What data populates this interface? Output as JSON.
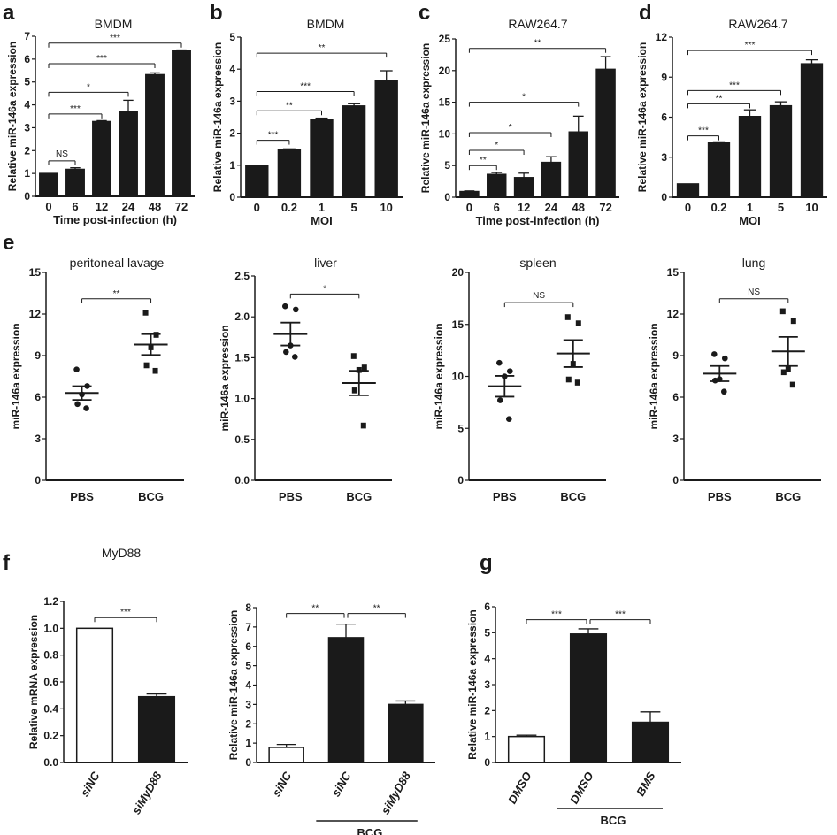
{
  "chart_data": [
    {
      "panel": "a",
      "type": "bar",
      "title": "BMDM",
      "ylabel": "Relative miR-146a expression",
      "xlabel": "Time post-infection (h)",
      "categories": [
        "0",
        "6",
        "12",
        "24",
        "48",
        "72"
      ],
      "values": [
        1.0,
        1.18,
        3.27,
        3.72,
        5.32,
        6.38
      ],
      "errors": [
        0,
        0.07,
        0.04,
        0.48,
        0.08,
        0.02
      ],
      "fills": [
        "#1a1a1a",
        "#1a1a1a",
        "#1a1a1a",
        "#1a1a1a",
        "#1a1a1a",
        "#1a1a1a"
      ],
      "ylim": [
        0,
        7
      ],
      "yticks": [
        0,
        1,
        2,
        3,
        4,
        5,
        6,
        7
      ],
      "ytick_labels": [
        "0",
        "1",
        "2",
        "3",
        "4",
        "5",
        "6",
        "7"
      ],
      "brackets": [
        {
          "from": 0,
          "to": 1,
          "y": 1.55,
          "label": "NS"
        },
        {
          "from": 0,
          "to": 2,
          "y": 3.6,
          "label": "***"
        },
        {
          "from": 0,
          "to": 3,
          "y": 4.55,
          "label": "*"
        },
        {
          "from": 0,
          "to": 4,
          "y": 5.8,
          "label": "***"
        },
        {
          "from": 0,
          "to": 5,
          "y": 6.7,
          "label": "***"
        }
      ]
    },
    {
      "panel": "b",
      "type": "bar",
      "title": "BMDM",
      "ylabel": "Relative miR-146a expression",
      "xlabel": "MOI",
      "categories": [
        "0",
        "0.2",
        "1",
        "5",
        "10"
      ],
      "values": [
        1.0,
        1.48,
        2.42,
        2.85,
        3.65
      ],
      "errors": [
        0,
        0.03,
        0.05,
        0.07,
        0.3
      ],
      "fills": [
        "#1a1a1a",
        "#1a1a1a",
        "#1a1a1a",
        "#1a1a1a",
        "#1a1a1a"
      ],
      "ylim": [
        0,
        5
      ],
      "yticks": [
        0,
        1,
        2,
        3,
        4,
        5
      ],
      "ytick_labels": [
        "0",
        "1",
        "2",
        "3",
        "4",
        "5"
      ],
      "brackets": [
        {
          "from": 0,
          "to": 1,
          "y": 1.78,
          "label": "***"
        },
        {
          "from": 0,
          "to": 2,
          "y": 2.7,
          "label": "**"
        },
        {
          "from": 0,
          "to": 3,
          "y": 3.3,
          "label": "***"
        },
        {
          "from": 0,
          "to": 4,
          "y": 4.5,
          "label": "**"
        }
      ]
    },
    {
      "panel": "c",
      "type": "bar",
      "title": "RAW264.7",
      "ylabel": "Relative miR-146a expression",
      "xlabel": "Time post-infection (h)",
      "categories": [
        "0",
        "6",
        "12",
        "24",
        "48",
        "72"
      ],
      "values": [
        0.9,
        3.6,
        3.1,
        5.5,
        10.3,
        20.2
      ],
      "errors": [
        0.1,
        0.3,
        0.7,
        0.9,
        2.5,
        2.0
      ],
      "fills": [
        "#1a1a1a",
        "#1a1a1a",
        "#1a1a1a",
        "#1a1a1a",
        "#1a1a1a",
        "#1a1a1a"
      ],
      "ylim": [
        0,
        25
      ],
      "yticks": [
        0,
        5,
        10,
        15,
        20,
        25
      ],
      "ytick_labels": [
        "0",
        "5",
        "10",
        "15",
        "20",
        "25"
      ],
      "brackets": [
        {
          "from": 0,
          "to": 1,
          "y": 5.0,
          "label": "**"
        },
        {
          "from": 0,
          "to": 2,
          "y": 7.4,
          "label": "*"
        },
        {
          "from": 0,
          "to": 3,
          "y": 10.2,
          "label": "*"
        },
        {
          "from": 0,
          "to": 4,
          "y": 15.0,
          "label": "*"
        },
        {
          "from": 0,
          "to": 5,
          "y": 23.5,
          "label": "**"
        }
      ]
    },
    {
      "panel": "d",
      "type": "bar",
      "title": "RAW264.7",
      "ylabel": "Relative miR-146a expression",
      "xlabel": "MOI",
      "categories": [
        "0",
        "0.2",
        "1",
        "5",
        "10"
      ],
      "values": [
        1.0,
        4.1,
        6.05,
        6.85,
        10.0
      ],
      "errors": [
        0,
        0.05,
        0.5,
        0.3,
        0.3
      ],
      "fills": [
        "#1a1a1a",
        "#1a1a1a",
        "#1a1a1a",
        "#1a1a1a",
        "#1a1a1a"
      ],
      "ylim": [
        0,
        12
      ],
      "yticks": [
        0,
        3,
        6,
        9,
        12
      ],
      "ytick_labels": [
        "0",
        "3",
        "6",
        "9",
        "12"
      ],
      "brackets": [
        {
          "from": 0,
          "to": 1,
          "y": 4.6,
          "label": "***"
        },
        {
          "from": 0,
          "to": 2,
          "y": 7.0,
          "label": "**"
        },
        {
          "from": 0,
          "to": 3,
          "y": 8.0,
          "label": "***"
        },
        {
          "from": 0,
          "to": 4,
          "y": 11.0,
          "label": "***"
        }
      ]
    },
    {
      "panel": "e",
      "type": "scatter",
      "title": "peritoneal lavage",
      "ylabel": "miR-146a expression",
      "groups": [
        {
          "name": "PBS",
          "marker": "circle",
          "points": [
            8.0,
            6.8,
            6.2,
            5.5,
            5.2
          ],
          "mean": 6.3,
          "sem": 0.5
        },
        {
          "name": "BCG",
          "marker": "square",
          "points": [
            12.1,
            10.5,
            9.6,
            8.3,
            7.9
          ],
          "mean": 9.8,
          "sem": 0.75
        }
      ],
      "ylim": [
        0,
        15
      ],
      "yticks": [
        0,
        3,
        6,
        9,
        12,
        15
      ],
      "ytick_labels": [
        "0",
        "3",
        "6",
        "9",
        "12",
        "15"
      ],
      "brackets": [
        {
          "from": 0,
          "to": 1,
          "y": 13.1,
          "label": "**"
        }
      ]
    },
    {
      "panel": "",
      "type": "scatter",
      "title": "liver",
      "ylabel": "miR-146a expression",
      "groups": [
        {
          "name": "PBS",
          "marker": "circle",
          "points": [
            2.13,
            2.09,
            1.65,
            1.57,
            1.51
          ],
          "mean": 1.79,
          "sem": 0.14
        },
        {
          "name": "BCG",
          "marker": "square",
          "points": [
            1.52,
            1.38,
            1.35,
            1.1,
            0.67
          ],
          "mean": 1.19,
          "sem": 0.15
        }
      ],
      "ylim": [
        0,
        2.5
      ],
      "yticks": [
        0,
        0.5,
        1,
        1.5,
        2,
        2.5
      ],
      "ytick_labels": [
        "0.0",
        "0.5",
        "1.0",
        "1.5",
        "2.0",
        "2.5"
      ],
      "brackets": [
        {
          "from": 0,
          "to": 1,
          "y": 2.28,
          "label": "*"
        }
      ]
    },
    {
      "panel": "",
      "type": "scatter",
      "title": "spleen",
      "ylabel": "miR-146a expression",
      "groups": [
        {
          "name": "PBS",
          "marker": "circle",
          "points": [
            11.3,
            10.5,
            10.0,
            7.7,
            5.9
          ],
          "mean": 9.05,
          "sem": 1.0
        },
        {
          "name": "BCG",
          "marker": "square",
          "points": [
            15.7,
            15.1,
            11.2,
            9.7,
            9.4
          ],
          "mean": 12.2,
          "sem": 1.3
        }
      ],
      "ylim": [
        0,
        20
      ],
      "yticks": [
        0,
        5,
        10,
        15,
        20
      ],
      "ytick_labels": [
        "0",
        "5",
        "10",
        "15",
        "20"
      ],
      "brackets": [
        {
          "from": 0,
          "to": 1,
          "y": 17.1,
          "label": "NS"
        }
      ]
    },
    {
      "panel": "",
      "type": "scatter",
      "title": "lung",
      "ylabel": "miR-146a expression",
      "groups": [
        {
          "name": "PBS",
          "marker": "circle",
          "points": [
            9.1,
            8.8,
            7.3,
            7.2,
            6.4
          ],
          "mean": 7.7,
          "sem": 0.55
        },
        {
          "name": "BCG",
          "marker": "square",
          "points": [
            12.2,
            11.5,
            8.0,
            7.8,
            6.9
          ],
          "mean": 9.3,
          "sem": 1.05
        }
      ],
      "ylim": [
        0,
        15
      ],
      "yticks": [
        0,
        3,
        6,
        9,
        12,
        15
      ],
      "ytick_labels": [
        "0",
        "3",
        "6",
        "9",
        "12",
        "15"
      ],
      "brackets": [
        {
          "from": 0,
          "to": 1,
          "y": 13.1,
          "label": "NS"
        }
      ]
    },
    {
      "panel": "f",
      "type": "bar",
      "title": "MyD88",
      "ylabel": "Relative mRNA expression",
      "xlabel": "",
      "categories": [
        "siNC",
        "siMyD88"
      ],
      "values": [
        1.0,
        0.49
      ],
      "errors": [
        0,
        0.02
      ],
      "fills": [
        "#ffffff",
        "#1a1a1a"
      ],
      "ylim": [
        0,
        1.2
      ],
      "yticks": [
        0,
        0.2,
        0.4,
        0.6,
        0.8,
        1.0,
        1.2
      ],
      "ytick_labels": [
        "0.0",
        "0.2",
        "0.4",
        "0.6",
        "0.8",
        "1.0",
        "1.2"
      ],
      "brackets": [
        {
          "from": 0,
          "to": 1,
          "y": 1.08,
          "label": "***"
        }
      ],
      "rotated": true
    },
    {
      "panel": "",
      "type": "bar",
      "title": "",
      "ylabel": "Relative miR-146a expression",
      "xlabel": "",
      "categories": [
        "siNC",
        "siNC",
        "siMyD88"
      ],
      "values": [
        0.78,
        6.45,
        3.0
      ],
      "errors": [
        0.15,
        0.7,
        0.18
      ],
      "fills": [
        "#ffffff",
        "#1a1a1a",
        "#1a1a1a"
      ],
      "ylim": [
        0,
        8
      ],
      "yticks": [
        0,
        1,
        2,
        3,
        4,
        5,
        6,
        7,
        8
      ],
      "ytick_labels": [
        "0",
        "1",
        "2",
        "3",
        "4",
        "5",
        "6",
        "7",
        "8"
      ],
      "brackets": [
        {
          "from": 0,
          "to": 1,
          "y": 7.7,
          "label": "**"
        },
        {
          "from": 1,
          "to": 2,
          "y": 7.7,
          "label": "**"
        }
      ],
      "rotated": true,
      "group_label": {
        "label": "BCG",
        "from": 1,
        "to": 2
      }
    },
    {
      "panel": "g",
      "type": "bar",
      "title": "",
      "ylabel": "Relative miR-146a expression",
      "xlabel": "",
      "categories": [
        "DMSO",
        "DMSO",
        "BMS"
      ],
      "values": [
        1.0,
        4.95,
        1.55
      ],
      "errors": [
        0.05,
        0.2,
        0.4
      ],
      "fills": [
        "#ffffff",
        "#1a1a1a",
        "#1a1a1a"
      ],
      "ylim": [
        0,
        6
      ],
      "yticks": [
        0,
        1,
        2,
        3,
        4,
        5,
        6
      ],
      "ytick_labels": [
        "0",
        "1",
        "2",
        "3",
        "4",
        "5",
        "6"
      ],
      "brackets": [
        {
          "from": 0,
          "to": 1,
          "y": 5.5,
          "label": "***"
        },
        {
          "from": 1,
          "to": 2,
          "y": 5.5,
          "label": "***"
        }
      ],
      "rotated": true,
      "group_label": {
        "label": "BCG",
        "from": 1,
        "to": 2
      }
    }
  ]
}
